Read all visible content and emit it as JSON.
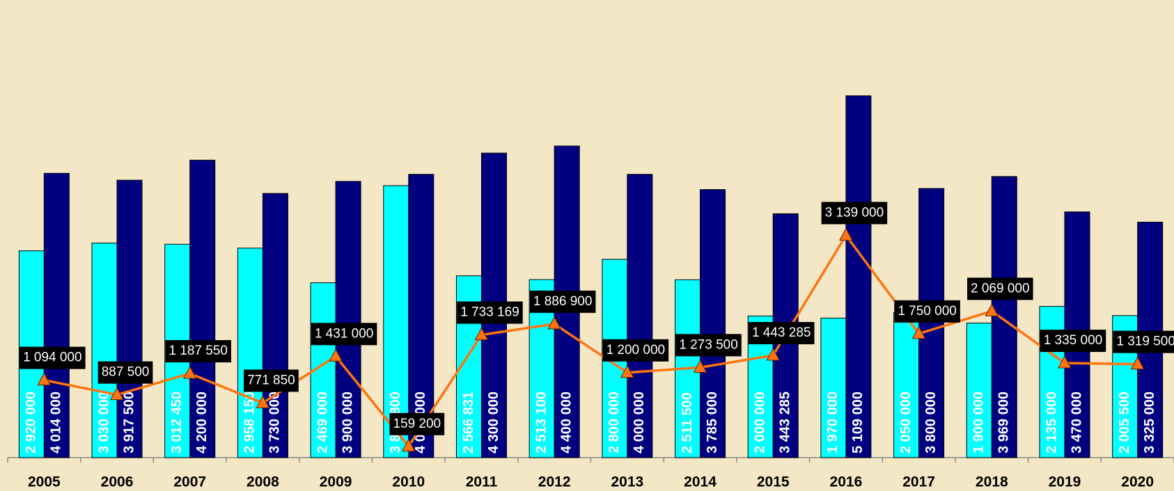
{
  "chart_data": {
    "type": "bar",
    "categories": [
      "2005",
      "2006",
      "2007",
      "2008",
      "2009",
      "2010",
      "2011",
      "2012",
      "2013",
      "2014",
      "2015",
      "2016",
      "2017",
      "2018",
      "2019",
      "2020"
    ],
    "ylim": [
      0,
      6000000
    ],
    "series": [
      {
        "type": "bar",
        "color": "#00ffff",
        "values": [
          2920000,
          3030000,
          3012450,
          2958150,
          2469000,
          3840800,
          2566831,
          2513100,
          2800000,
          2511500,
          2000000,
          1970000,
          2050000,
          1900000,
          2135000,
          2005500
        ],
        "value_labels": [
          "2 920 000",
          "3 030 000",
          "3 012 450",
          "2 958 150",
          "2 469 000",
          "3 840 800",
          "2 566 831",
          "2 513 100",
          "2 800 000",
          "2 511 500",
          "2 000 000",
          "1 970 000",
          "2 050 000",
          "1 900 000",
          "2 135 000",
          "2 005 500"
        ]
      },
      {
        "type": "bar",
        "color": "#000080",
        "values": [
          4014000,
          3917500,
          4200000,
          3730000,
          3900000,
          4000000,
          4300000,
          4400000,
          4000000,
          3785000,
          3443285,
          5109000,
          3800000,
          3969000,
          3470000,
          3325000
        ],
        "value_labels": [
          "4 014 000",
          "3 917 500",
          "4 200 000",
          "3 730 000",
          "3 900 000",
          "4 000 000",
          "4 300 000",
          "4 400 000",
          "4 000 000",
          "3 785 000",
          "3 443 285",
          "5 109 000",
          "3 800 000",
          "3 969 000",
          "3 470 000",
          "3 325 000"
        ]
      },
      {
        "type": "line",
        "color": "#ff7410",
        "values": [
          1094000,
          887500,
          1187550,
          771850,
          1431000,
          159200,
          1733169,
          1886900,
          1200000,
          1273500,
          1443285,
          3139000,
          1750000,
          2069000,
          1335000,
          1319500
        ],
        "value_labels": [
          "1 094 000",
          "887 500",
          "1 187 550",
          "771 850",
          "1 431 000",
          "159 200",
          "1 733 169",
          "1 886 900",
          "1 200 000",
          "1 273 500",
          "1 443 285",
          "3 139 000",
          "1 750 000",
          "2 069 000",
          "1 335 000",
          "1 319 500"
        ]
      }
    ]
  }
}
